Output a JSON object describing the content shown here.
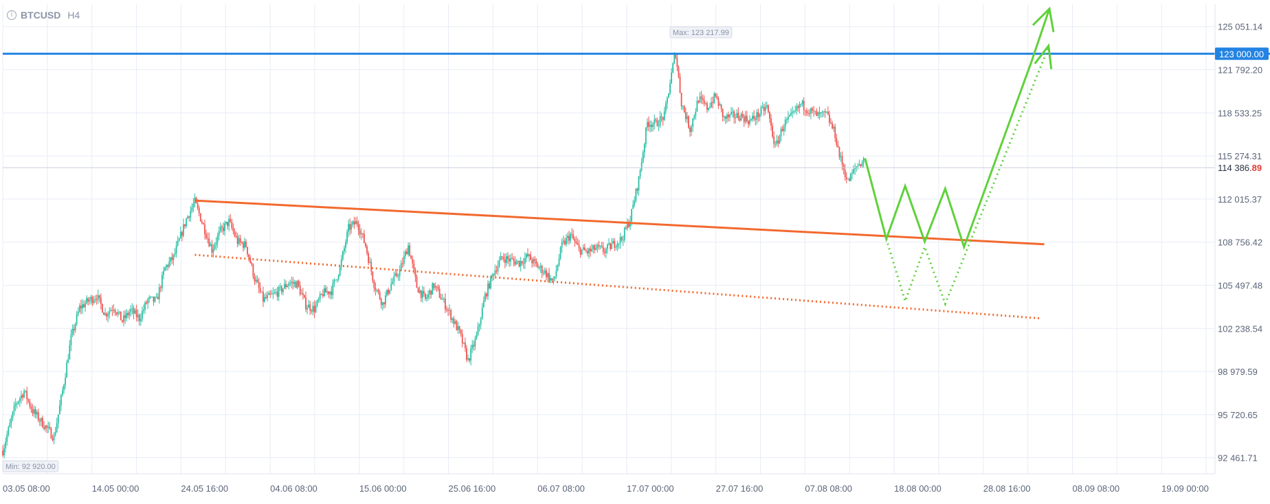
{
  "header": {
    "symbol": "BTCUSD",
    "timeframe": "H4",
    "info_icon": "info-icon"
  },
  "colors": {
    "grid": "#e8ecf5",
    "up": "#26bfa4",
    "down": "#ef5350",
    "level_line": "#2383e2",
    "orange": "#f2692e",
    "projection": "#5fd13a",
    "axis_text": "#5a6478",
    "last_price_red": "#e53935"
  },
  "chart_data": {
    "type": "candlestick",
    "symbol": "BTCUSD",
    "timeframe": "H4",
    "y_axis": {
      "ticks": [
        "125 051.14",
        "121 792.20",
        "118 533.25",
        "115 274.31",
        "112 015.37",
        "108 756.42",
        "105 497.48",
        "102 238.54",
        "98 979.59",
        "95 720.65",
        "92 461.71"
      ],
      "range": [
        91250,
        126750
      ]
    },
    "x_axis": {
      "ticks": [
        "03.05 08:00",
        "14.05 00:00",
        "24.05 16:00",
        "04.06 08:00",
        "15.06 00:00",
        "25.06 16:00",
        "06.07 08:00",
        "17.07 00:00",
        "27.07 16:00",
        "07.08 08:00",
        "18.08 00:00",
        "28.08 16:00",
        "08.09 08:00",
        "19.09 00:00"
      ],
      "range_days": [
        0,
        142
      ]
    },
    "max_label": "Max: 123 217.99",
    "min_label": "Min: 92 920.00",
    "level_price": 123000,
    "level_label": "123 000.00",
    "last_price_main": "114 386.",
    "last_price_tail": "89",
    "last_price": 114386.89,
    "price_path": [
      [
        0,
        93000
      ],
      [
        1.5,
        96500
      ],
      [
        2.5,
        97500
      ],
      [
        3.5,
        96000
      ],
      [
        5,
        94800
      ],
      [
        6,
        94000
      ],
      [
        7,
        97500
      ],
      [
        8,
        101500
      ],
      [
        9,
        103800
      ],
      [
        10,
        104300
      ],
      [
        11,
        104700
      ],
      [
        12,
        103300
      ],
      [
        13,
        103900
      ],
      [
        14,
        102800
      ],
      [
        15,
        103600
      ],
      [
        16,
        103000
      ],
      [
        17,
        104400
      ],
      [
        18,
        104300
      ],
      [
        19,
        106800
      ],
      [
        20,
        107600
      ],
      [
        21.5,
        110500
      ],
      [
        22.5,
        111800
      ],
      [
        23.5,
        110000
      ],
      [
        24.5,
        108200
      ],
      [
        25.5,
        109600
      ],
      [
        26.5,
        110300
      ],
      [
        27.5,
        108800
      ],
      [
        28.5,
        108500
      ],
      [
        29.5,
        106000
      ],
      [
        30.5,
        104400
      ],
      [
        31.5,
        104700
      ],
      [
        32.5,
        105100
      ],
      [
        33.5,
        105700
      ],
      [
        34.5,
        105600
      ],
      [
        35.5,
        104000
      ],
      [
        36.5,
        103700
      ],
      [
        37.5,
        104900
      ],
      [
        38.5,
        105100
      ],
      [
        39.5,
        106800
      ],
      [
        40.5,
        109800
      ],
      [
        41.5,
        110300
      ],
      [
        42.5,
        108500
      ],
      [
        43.5,
        105600
      ],
      [
        44.5,
        104100
      ],
      [
        45.5,
        105600
      ],
      [
        46.5,
        106600
      ],
      [
        47.5,
        108500
      ],
      [
        48.5,
        105400
      ],
      [
        49.5,
        104400
      ],
      [
        50.5,
        105500
      ],
      [
        51.5,
        104400
      ],
      [
        52.5,
        103200
      ],
      [
        53.5,
        101900
      ],
      [
        54.5,
        99800
      ],
      [
        55.5,
        101600
      ],
      [
        56.5,
        104700
      ],
      [
        57.5,
        106500
      ],
      [
        58.5,
        107600
      ],
      [
        59.5,
        107400
      ],
      [
        60.5,
        107200
      ],
      [
        61.5,
        107700
      ],
      [
        62.5,
        107000
      ],
      [
        63.5,
        106500
      ],
      [
        64.5,
        105700
      ],
      [
        65.5,
        108500
      ],
      [
        66.5,
        109300
      ],
      [
        67.5,
        108200
      ],
      [
        68.5,
        108000
      ],
      [
        69.5,
        108300
      ],
      [
        70.5,
        108100
      ],
      [
        71.5,
        108600
      ],
      [
        72.5,
        109000
      ],
      [
        73.5,
        110500
      ],
      [
        74.5,
        113500
      ],
      [
        75.5,
        117800
      ],
      [
        76.5,
        117700
      ],
      [
        77.5,
        118300
      ],
      [
        78,
        120200
      ],
      [
        78.8,
        123200
      ],
      [
        79.5,
        119300
      ],
      [
        80.5,
        117300
      ],
      [
        81.5,
        119600
      ],
      [
        82.5,
        118900
      ],
      [
        83.5,
        119800
      ],
      [
        84.5,
        118100
      ],
      [
        85.5,
        118300
      ],
      [
        86.5,
        118300
      ],
      [
        87.5,
        117900
      ],
      [
        88.5,
        118400
      ],
      [
        89.5,
        119000
      ],
      [
        90.5,
        115900
      ],
      [
        91.5,
        117700
      ],
      [
        92.5,
        118300
      ],
      [
        93.5,
        119200
      ],
      [
        94.5,
        118700
      ],
      [
        95.5,
        118300
      ],
      [
        96.5,
        118400
      ],
      [
        97.5,
        116900
      ],
      [
        98,
        115300
      ],
      [
        99,
        113300
      ],
      [
        100,
        114500
      ],
      [
        101,
        115000
      ]
    ],
    "overlays": {
      "resistance_solid": [
        [
          22.5,
          111900
        ],
        [
          122,
          108600
        ]
      ],
      "support_dotted": [
        [
          22.5,
          107800
        ],
        [
          121.5,
          103000
        ]
      ],
      "projection_solid": [
        [
          101,
          115100
        ],
        [
          103.5,
          109000
        ],
        [
          105.7,
          113000
        ],
        [
          108,
          108800
        ],
        [
          110.4,
          112800
        ],
        [
          112.6,
          108400
        ],
        [
          120.5,
          122400
        ]
      ],
      "projection_dotted": [
        [
          103.5,
          109000
        ],
        [
          105.7,
          104300
        ],
        [
          108,
          108400
        ],
        [
          110.4,
          104100
        ],
        [
          122.5,
          123500
        ]
      ],
      "solid_arrow_tip": [
        122.6,
        126400
      ],
      "solid_arrow_tail": [
        120.5,
        122400
      ],
      "dotted_arrow_tip": [
        122.5,
        123600
      ]
    }
  }
}
